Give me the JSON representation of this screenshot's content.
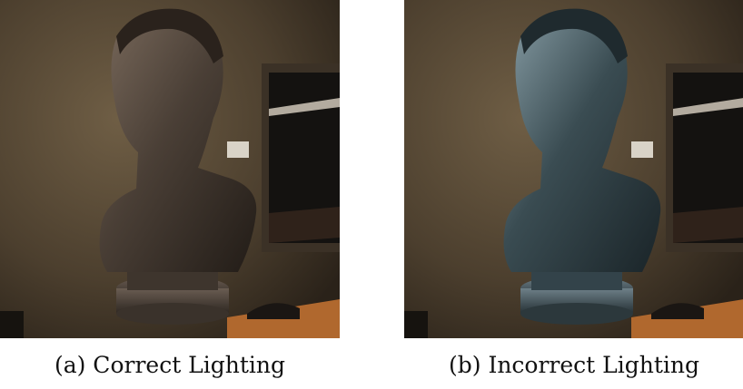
{
  "figure": {
    "panels": [
      {
        "caption": "(a) Correct Lighting",
        "bust_tone": "#4a3f36"
      },
      {
        "caption": "(b) Incorrect Lighting",
        "bust_tone": "#3a4c52"
      }
    ]
  }
}
